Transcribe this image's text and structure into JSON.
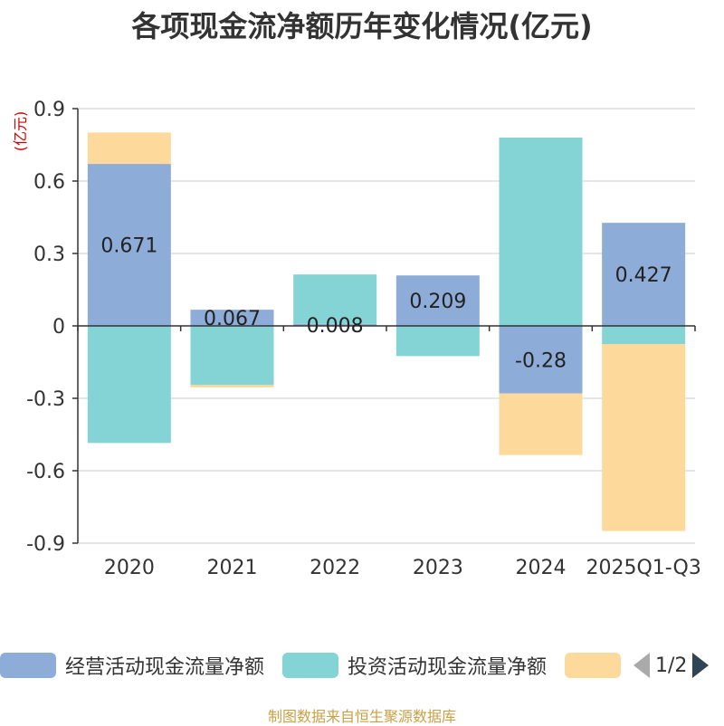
{
  "chart_data": {
    "type": "bar",
    "stacked": true,
    "title": "各项现金流净额历年变化情况(亿元)",
    "unit_label": "(亿元)",
    "categories": [
      "2020",
      "2021",
      "2022",
      "2023",
      "2024",
      "2025Q1-Q3"
    ],
    "ylim": [
      -0.9,
      0.9
    ],
    "yticks": [
      0.9,
      0.6,
      0.3,
      0,
      -0.3,
      -0.6,
      -0.9
    ],
    "ytick_labels": [
      "0.9",
      "0.6",
      "0.3",
      "0",
      "-0.3",
      "-0.6",
      "-0.9"
    ],
    "grid": true,
    "legend_position": "bottom",
    "series": [
      {
        "name": "经营活动现金流量净额",
        "color": "#8eacd8",
        "values": [
          0.671,
          0.067,
          0.008,
          0.209,
          -0.28,
          0.427
        ],
        "show_labels": true
      },
      {
        "name": "投资活动现金流量净额",
        "color": "#84d4d6",
        "values": [
          -0.485,
          -0.245,
          0.205,
          -0.125,
          0.78,
          -0.075
        ],
        "show_labels": false
      },
      {
        "name": "",
        "color": "#fdd99c",
        "values": [
          0.13,
          -0.01,
          0,
          0,
          -0.255,
          -0.775
        ],
        "show_labels": false
      }
    ],
    "data_labels": [
      "0.671",
      "0.067",
      "0.008",
      "0.209",
      "-0.28",
      "0.427"
    ]
  },
  "legend": {
    "items": [
      {
        "label": "经营活动现金流量净额",
        "color": "#8eacd8"
      },
      {
        "label": "投资活动现金流量净额",
        "color": "#84d4d6"
      },
      {
        "label": "",
        "color": "#fdd99c"
      }
    ],
    "page": "1/2"
  },
  "footer": "制图数据来自恒生聚源数据库"
}
